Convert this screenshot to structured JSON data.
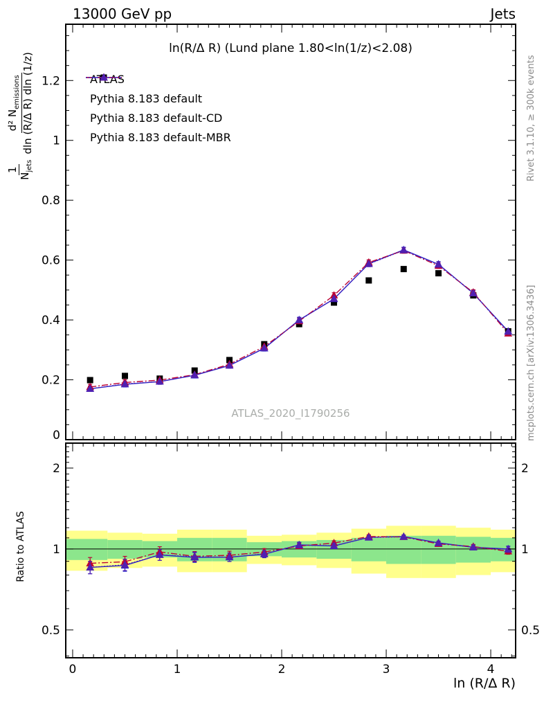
{
  "header": {
    "left": "13000 GeV pp",
    "right": "Jets"
  },
  "watermark": "ATLAS_2020_I1790256",
  "side_notes": {
    "rivet": "Rivet 3.1.10, ≥ 300k events",
    "mcplots": "mcplots.cern.ch [arXiv:1306.3436]"
  },
  "labels": {
    "y_label_main": {
      "frac1_num": "1",
      "frac1_den": "N",
      "frac1_den_sub": "jets",
      "frac2_num": "d² N",
      "frac2_num_sub": "emissions",
      "frac2_den": "dln (R/Δ R) dln (1/z)"
    }
  },
  "chart_data": {
    "type": "line",
    "title": "ln(R/Δ R) (Lund plane 1.80<ln(1/z)<2.08)",
    "xlabel": "ln (R/Δ R)",
    "xlim": [
      -0.066,
      4.238
    ],
    "xticks": [
      0,
      1,
      2,
      3,
      4
    ],
    "x": [
      0.167,
      0.5,
      0.833,
      1.167,
      1.5,
      1.833,
      2.167,
      2.5,
      2.833,
      3.167,
      3.5,
      3.833,
      4.167
    ],
    "bin_width": 0.3333,
    "main_panel": {
      "ylim": [
        0,
        1.388
      ],
      "yticks": [
        0,
        0.2,
        0.4,
        0.6,
        0.8,
        1,
        1.2
      ],
      "series": [
        {
          "name": "ATLAS",
          "marker": "square",
          "color": "#000000",
          "line": "none",
          "yerr": 0.006,
          "values": [
            0.199,
            0.213,
            0.204,
            0.231,
            0.266,
            0.319,
            0.386,
            0.458,
            0.532,
            0.57,
            0.556,
            0.482,
            0.362
          ]
        },
        {
          "name": "Pythia 8.183 default",
          "marker": "triangle",
          "color": "#2020cc",
          "line": "solid",
          "yerr": 0.009,
          "values": [
            0.17,
            0.185,
            0.194,
            0.215,
            0.248,
            0.305,
            0.4,
            0.47,
            0.588,
            0.634,
            0.586,
            0.489,
            0.362
          ]
        },
        {
          "name": "Pythia 8.183 default-CD",
          "marker": "triangle",
          "color": "#bb0033",
          "line": "dashdot",
          "yerr": 0.009,
          "values": [
            0.176,
            0.191,
            0.199,
            0.217,
            0.252,
            0.311,
            0.396,
            0.482,
            0.592,
            0.632,
            0.581,
            0.492,
            0.355
          ]
        },
        {
          "name": "Pythia 8.183 default-MBR",
          "marker": "triangle",
          "color": "#5020b0",
          "line": "dotted",
          "yerr": 0.009,
          "values": [
            0.17,
            0.186,
            0.194,
            0.216,
            0.248,
            0.306,
            0.399,
            0.471,
            0.587,
            0.633,
            0.585,
            0.489,
            0.361
          ]
        }
      ]
    },
    "ratio_panel": {
      "ylabel": "Ratio to ATLAS",
      "scale": "log",
      "ylim": [
        0.394,
        2.476
      ],
      "yticks": [
        0.5,
        1,
        2
      ],
      "minor_yticks": [
        0.4,
        0.6,
        0.7,
        0.8,
        0.9,
        1.1,
        1.2,
        1.3,
        1.4,
        1.5,
        1.6,
        1.7,
        1.8,
        1.9,
        2.1,
        2.2,
        2.3,
        2.4
      ],
      "reference_series": "ATLAS",
      "bands": {
        "yellow_color": "#ffff8c",
        "green_color": "#8ce68c",
        "yellow_half_width": [
          0.17,
          0.15,
          0.14,
          0.18,
          0.18,
          0.12,
          0.13,
          0.15,
          0.19,
          0.22,
          0.22,
          0.2,
          0.18
        ],
        "green_half_width": [
          0.09,
          0.08,
          0.07,
          0.1,
          0.1,
          0.06,
          0.07,
          0.08,
          0.1,
          0.12,
          0.12,
          0.11,
          0.1
        ]
      }
    }
  }
}
